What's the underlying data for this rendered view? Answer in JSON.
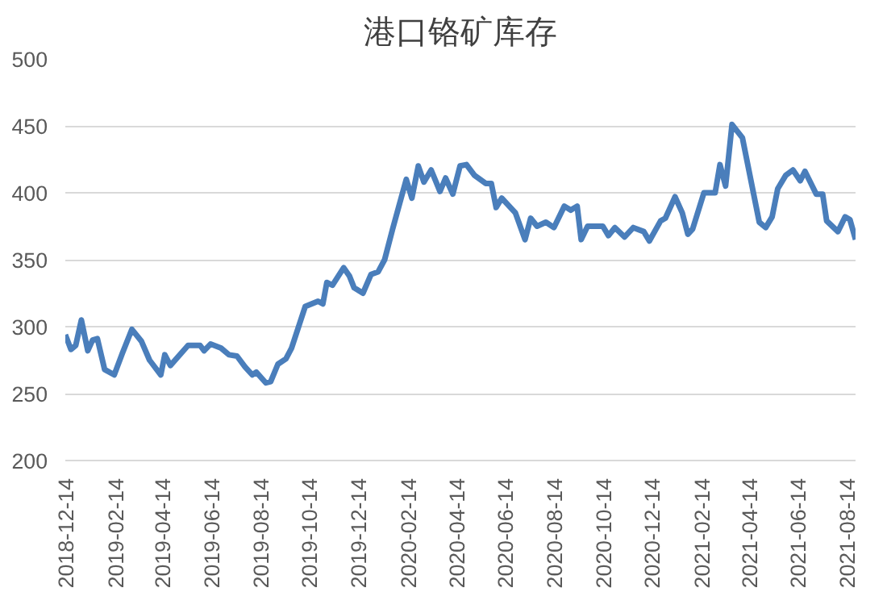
{
  "chart_data": {
    "type": "line",
    "title": "港口铬矿库存",
    "x": [
      "2018-12-14",
      "2018-12-21",
      "2018-12-27",
      "2019-01-03",
      "2019-01-11",
      "2019-01-17",
      "2019-01-23",
      "2019-02-01",
      "2019-02-13",
      "2019-02-23",
      "2019-03-07",
      "2019-03-19",
      "2019-03-29",
      "2019-04-12",
      "2019-04-17",
      "2019-04-24",
      "2019-05-16",
      "2019-05-26",
      "2019-05-31",
      "2019-06-05",
      "2019-06-13",
      "2019-06-26",
      "2019-07-06",
      "2019-07-16",
      "2019-07-26",
      "2019-08-04",
      "2019-08-09",
      "2019-08-21",
      "2019-08-27",
      "2019-09-05",
      "2019-09-15",
      "2019-09-22",
      "2019-10-09",
      "2019-10-25",
      "2019-10-31",
      "2019-11-05",
      "2019-11-12",
      "2019-11-26",
      "2019-12-03",
      "2019-12-09",
      "2019-12-20",
      "2019-12-30",
      "2020-01-08",
      "2020-01-16",
      "2020-01-26",
      "2020-02-12",
      "2020-02-19",
      "2020-02-27",
      "2020-03-05",
      "2020-03-14",
      "2020-03-25",
      "2020-04-01",
      "2020-04-10",
      "2020-04-19",
      "2020-04-27",
      "2020-05-07",
      "2020-05-21",
      "2020-05-28",
      "2020-06-03",
      "2020-06-10",
      "2020-06-27",
      "2020-07-09",
      "2020-07-16",
      "2020-07-24",
      "2020-08-04",
      "2020-08-14",
      "2020-08-27",
      "2020-09-04",
      "2020-09-12",
      "2020-09-17",
      "2020-09-25",
      "2020-10-14",
      "2020-10-21",
      "2020-10-29",
      "2020-11-10",
      "2020-11-21",
      "2020-12-04",
      "2020-12-11",
      "2020-12-25",
      "2020-12-31",
      "2021-01-12",
      "2021-01-21",
      "2021-01-28",
      "2021-02-03",
      "2021-02-17",
      "2021-03-03",
      "2021-03-09",
      "2021-03-16",
      "2021-03-24",
      "2021-04-06",
      "2021-04-27",
      "2021-05-05",
      "2021-05-13",
      "2021-05-20",
      "2021-05-30",
      "2021-06-08",
      "2021-06-17",
      "2021-06-23",
      "2021-07-07",
      "2021-07-15",
      "2021-07-20",
      "2021-08-03",
      "2021-08-12",
      "2021-08-18",
      "2021-08-25"
    ],
    "series": [
      {
        "color": "#4a7ebb",
        "values": [
          294,
          283,
          286,
          305,
          282,
          290,
          291,
          268,
          264,
          280,
          298,
          289,
          275,
          264,
          279,
          271,
          286,
          286,
          286,
          282,
          287,
          284,
          279,
          278,
          270,
          264,
          266,
          258,
          259,
          272,
          276,
          284,
          315,
          319,
          317,
          333,
          331,
          344,
          338,
          329,
          325,
          339,
          341,
          350,
          373,
          410,
          396,
          420,
          408,
          417,
          401,
          411,
          399,
          420,
          421,
          413,
          407,
          407,
          389,
          396,
          385,
          365,
          381,
          375,
          378,
          374,
          390,
          387,
          390,
          365,
          375,
          375,
          368,
          374,
          367,
          374,
          371,
          364,
          379,
          381,
          397,
          385,
          369,
          373,
          400,
          400,
          421,
          405,
          451,
          441,
          378,
          374,
          382,
          403,
          413,
          417,
          409,
          416,
          399,
          399,
          379,
          371,
          382,
          380,
          365
        ]
      }
    ],
    "xlim": [
      "2018-12-14",
      "2021-08-25"
    ],
    "xticks": [
      "2018-12-14",
      "2019-02-14",
      "2019-04-14",
      "2019-06-14",
      "2019-08-14",
      "2019-10-14",
      "2019-12-14",
      "2020-02-14",
      "2020-04-14",
      "2020-06-14",
      "2020-08-14",
      "2020-10-14",
      "2020-12-14",
      "2021-02-14",
      "2021-04-14",
      "2021-06-14",
      "2021-08-14"
    ],
    "ylim": [
      200,
      500
    ],
    "yticks": [
      200,
      250,
      300,
      350,
      400,
      450,
      500
    ],
    "grid": "y",
    "marker": "none",
    "line_style": "solid"
  }
}
